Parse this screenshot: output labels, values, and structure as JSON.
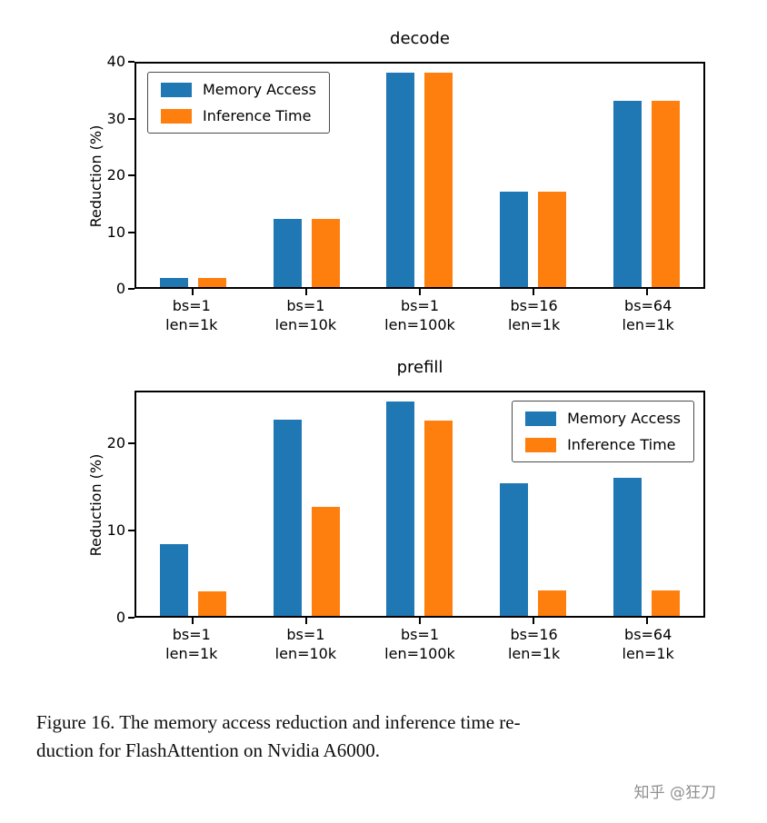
{
  "colors": {
    "memory_access": "#1f77b4",
    "inference_time": "#ff7f0e",
    "axis": "#000000",
    "background": "#ffffff",
    "watermark": "#909090"
  },
  "caption": {
    "line1": "Figure 16.  The memory access reduction and inference time re-",
    "line2": "duction for FlashAttention on Nvidia A6000."
  },
  "watermark": {
    "text": "知乎 @狂刀"
  },
  "chart_data": [
    {
      "type": "bar",
      "title": "decode",
      "xlabel": "",
      "ylabel": "Reduction (%)",
      "ylim": [
        0,
        40
      ],
      "yticks": [
        0,
        10,
        20,
        30,
        40
      ],
      "grid": false,
      "legend_position": "upper-left",
      "categories": [
        [
          "bs=1",
          "len=1k"
        ],
        [
          "bs=1",
          "len=10k"
        ],
        [
          "bs=1",
          "len=100k"
        ],
        [
          "bs=16",
          "len=1k"
        ],
        [
          "bs=64",
          "len=1k"
        ]
      ],
      "series": [
        {
          "name": "Memory Access",
          "color": "#1f77b4",
          "values": [
            1.6,
            12.2,
            38.3,
            17.1,
            33.4
          ]
        },
        {
          "name": "Inference Time",
          "color": "#ff7f0e",
          "values": [
            1.6,
            12.2,
            38.3,
            17.1,
            33.4
          ]
        }
      ]
    },
    {
      "type": "bar",
      "title": "prefill",
      "xlabel": "",
      "ylabel": "Reduction (%)",
      "ylim": [
        0,
        26
      ],
      "yticks": [
        0,
        10,
        20
      ],
      "grid": false,
      "legend_position": "upper-right",
      "categories": [
        [
          "bs=1",
          "len=1k"
        ],
        [
          "bs=1",
          "len=10k"
        ],
        [
          "bs=1",
          "len=100k"
        ],
        [
          "bs=16",
          "len=1k"
        ],
        [
          "bs=64",
          "len=1k"
        ]
      ],
      "series": [
        {
          "name": "Memory Access",
          "color": "#1f77b4",
          "values": [
            8.4,
            22.8,
            24.9,
            15.4,
            16.1
          ]
        },
        {
          "name": "Inference Time",
          "color": "#ff7f0e",
          "values": [
            2.9,
            12.7,
            22.7,
            3.0,
            3.0
          ]
        }
      ]
    }
  ]
}
